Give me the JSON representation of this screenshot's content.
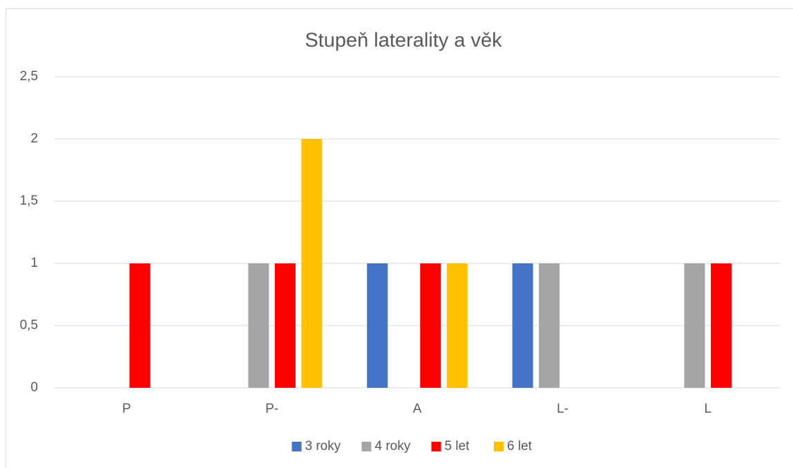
{
  "chart_data": {
    "type": "bar",
    "title": "Stupeň laterality a věk",
    "categories": [
      "P",
      "P-",
      "A",
      "L-",
      "L"
    ],
    "series": [
      {
        "name": "3 roky",
        "color": "#4472c4",
        "values": [
          0,
          0,
          1,
          1,
          0
        ]
      },
      {
        "name": "4 roky",
        "color": "#a5a5a5",
        "values": [
          0,
          1,
          0,
          1,
          1
        ]
      },
      {
        "name": "5 let",
        "color": "#ff0000",
        "values": [
          1,
          1,
          1,
          0,
          1
        ]
      },
      {
        "name": "6 let",
        "color": "#ffc000",
        "values": [
          0,
          2,
          1,
          0,
          0
        ]
      }
    ],
    "ylim": [
      0,
      2.5
    ],
    "yticks": [
      0,
      {
        "value": 0.5,
        "label": "0,5"
      },
      1,
      {
        "value": 1.5,
        "label": "1,5"
      },
      2,
      {
        "value": 2.5,
        "label": "2,5"
      }
    ],
    "grid": true,
    "legend": "bottom"
  }
}
